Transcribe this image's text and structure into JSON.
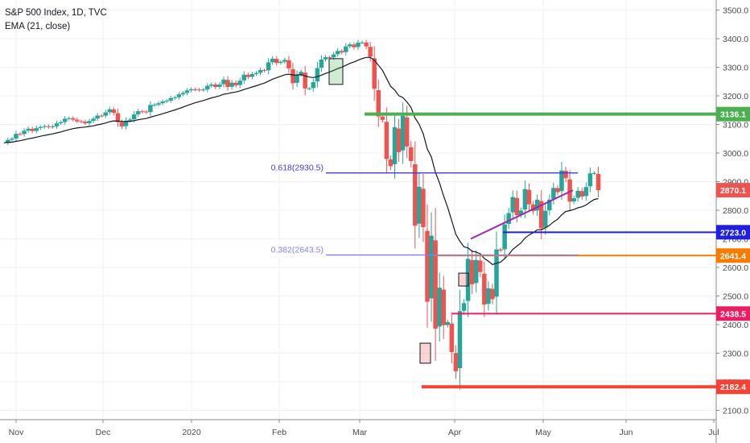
{
  "legend": {
    "title": "S&P 500 Index, 1D, TVC",
    "indicator": "EMA (21, close)"
  },
  "colors": {
    "up": "#26a69a",
    "down": "#ef5350",
    "ema": "#131722",
    "grid": "#eef0f3"
  },
  "chart_data": {
    "type": "candlestick",
    "title": "S&P 500 Index, 1D, TVC",
    "x_ticks": [
      "Nov",
      "Dec",
      "2020",
      "Feb",
      "Mar",
      "Apr",
      "May",
      "Jun",
      "Jul"
    ],
    "y_ticks": [
      2100.0,
      2200.0,
      2300.0,
      2400.0,
      2500.0,
      2600.0,
      2700.0,
      2800.0,
      2900.0,
      3000.0,
      3100.0,
      3200.0,
      3300.0,
      3400.0,
      3500.0
    ],
    "ylim": [
      2075,
      3555
    ],
    "grid": true,
    "indicator": "EMA (21, close)",
    "close_series": [
      3036,
      3046,
      3050,
      3067,
      3066,
      3078,
      3085,
      3077,
      3087,
      3091,
      3094,
      3091,
      3093,
      3104,
      3108,
      3120,
      3122,
      3117,
      3111,
      3110,
      3104,
      3112,
      3120,
      3131,
      3130,
      3142,
      3153,
      3141,
      3108,
      3093,
      3113,
      3117,
      3135,
      3146,
      3145,
      3142,
      3168,
      3169,
      3174,
      3180,
      3183,
      3192,
      3195,
      3205,
      3210,
      3219,
      3223,
      3222,
      3220,
      3222,
      3235,
      3240,
      3231,
      3240,
      3257,
      3231,
      3246,
      3237,
      3253,
      3274,
      3266,
      3276,
      3280,
      3290,
      3288,
      3317,
      3330,
      3315,
      3319,
      3326,
      3296,
      3244,
      3274,
      3284,
      3226,
      3226,
      3248,
      3297,
      3327,
      3335,
      3334,
      3345,
      3357,
      3352,
      3373,
      3380,
      3370,
      3386,
      3387,
      3373,
      3337,
      3225,
      3128,
      3116,
      2979,
      2954,
      3090,
      3003,
      3130,
      3023,
      2972,
      2746,
      2882,
      2741,
      2480,
      2711,
      2386,
      2529,
      2398,
      2409,
      2304,
      2237,
      2447,
      2475,
      2630,
      2541,
      2626,
      2584,
      2470,
      2527,
      2489,
      2663,
      2659,
      2750,
      2790,
      2846,
      2783,
      2799,
      2874,
      2821,
      2797,
      2837,
      2737,
      2798,
      2837,
      2878,
      2863,
      2939,
      2912,
      2830,
      2842,
      2868,
      2848,
      2881,
      2929,
      2930,
      2870
    ],
    "visible_ohlc": {
      "first_index": 154,
      "count": 141
    },
    "levels": [
      {
        "label": "3136.1",
        "value": 3136.1,
        "color": "#4caf50"
      },
      {
        "label": "2870.1",
        "value": 2870.1,
        "color": "#ef5350"
      },
      {
        "label": "2723.0",
        "value": 2723.0,
        "color": "#1f1fdd"
      },
      {
        "label": "2641.4",
        "value": 2641.4,
        "color": "#f57c00"
      },
      {
        "label": "2438.5",
        "value": 2438.5,
        "color": "#e91e63"
      },
      {
        "label": "2182.4",
        "value": 2182.4,
        "color": "#f44336"
      }
    ],
    "fib_levels": [
      {
        "label": "0.618(2930.5)",
        "value": 2930.5,
        "color": "#3b3bf0"
      },
      {
        "label": "0.382(2643.5)",
        "value": 2643.5,
        "color": "#8080f5"
      }
    ]
  }
}
